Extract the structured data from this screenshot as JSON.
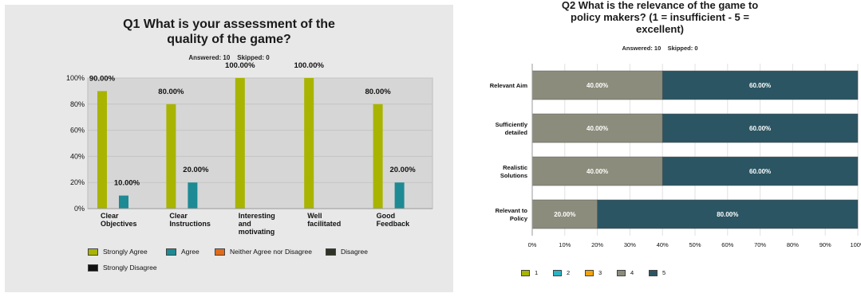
{
  "chart_data": [
    {
      "type": "bar",
      "title_line1": "Q1 What is your assessment of the",
      "title_line2": "quality of the game?",
      "answered": "Answered: 10",
      "skipped": "Skipped: 0",
      "categories": [
        [
          "Clear",
          "Objectives"
        ],
        [
          "Clear",
          "Instructions"
        ],
        [
          "Interesting",
          "and",
          "motivating"
        ],
        [
          "Well",
          "facilitated"
        ],
        [
          "Good",
          "Feedback"
        ]
      ],
      "y_ticks": [
        "0%",
        "20%",
        "40%",
        "60%",
        "80%",
        "100%"
      ],
      "ylim": [
        0,
        100
      ],
      "series": [
        {
          "name": "Strongly Agree",
          "color": "#a8b400",
          "values": [
            90,
            80,
            100,
            100,
            80
          ],
          "labels": [
            "90.00%",
            "80.00%",
            "100.00%",
            "100.00%",
            "80.00%"
          ]
        },
        {
          "name": "Agree",
          "color": "#1d8a94",
          "values": [
            10,
            20,
            0,
            0,
            20
          ],
          "labels": [
            "10.00%",
            "20.00%",
            "",
            "",
            "20.00%"
          ]
        },
        {
          "name": "Neither Agree nor Disagree",
          "color": "#e06b1a",
          "values": [
            0,
            0,
            0,
            0,
            0
          ],
          "labels": [
            "",
            "",
            "",
            "",
            ""
          ]
        },
        {
          "name": "Disagree",
          "color": "#2f3326",
          "values": [
            0,
            0,
            0,
            0,
            0
          ],
          "labels": [
            "",
            "",
            "",
            "",
            ""
          ]
        },
        {
          "name": "Strongly Disagree",
          "color": "#111111",
          "values": [
            0,
            0,
            0,
            0,
            0
          ],
          "labels": [
            "",
            "",
            "",
            "",
            ""
          ]
        }
      ]
    },
    {
      "type": "bar",
      "orientation": "horizontal-stacked",
      "title_line1": "Q2 What is the relevance of the game to",
      "title_line2": "policy makers? (1 = insufficient - 5 =",
      "title_line3": "excellent)",
      "answered": "Answered: 10",
      "skipped": "Skipped: 0",
      "categories": [
        [
          "Relevant Aim"
        ],
        [
          "Sufficiently",
          "detailed"
        ],
        [
          "Realistic",
          "Solutions"
        ],
        [
          "Relevant to",
          "Policy"
        ]
      ],
      "x_ticks": [
        "0%",
        "10%",
        "20%",
        "30%",
        "40%",
        "50%",
        "60%",
        "70%",
        "80%",
        "90%",
        "100%"
      ],
      "xlim": [
        0,
        100
      ],
      "series": [
        {
          "name": "1",
          "color": "#a8b400",
          "values": [
            0,
            0,
            0,
            0
          ],
          "labels": [
            "",
            "",
            "",
            ""
          ]
        },
        {
          "name": "2",
          "color": "#2ab3c4",
          "values": [
            0,
            0,
            0,
            0
          ],
          "labels": [
            "",
            "",
            "",
            ""
          ]
        },
        {
          "name": "3",
          "color": "#f2a20d",
          "values": [
            0,
            0,
            0,
            0
          ],
          "labels": [
            "",
            "",
            "",
            ""
          ]
        },
        {
          "name": "4",
          "color": "#8c8c7c",
          "values": [
            40,
            40,
            40,
            20
          ],
          "labels": [
            "40.00%",
            "40.00%",
            "40.00%",
            "20.00%"
          ]
        },
        {
          "name": "5",
          "color": "#2b5563",
          "values": [
            60,
            60,
            60,
            80
          ],
          "labels": [
            "60.00%",
            "60.00%",
            "60.00%",
            "80.00%"
          ]
        }
      ]
    }
  ]
}
